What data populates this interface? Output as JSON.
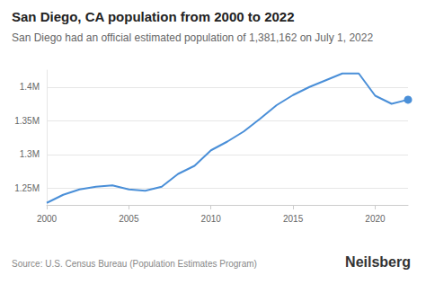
{
  "chart_data": {
    "type": "line",
    "title": "San Diego, CA population from 2000 to 2022",
    "subtitle": "San Diego had an official estimated population of 1,381,162 on July 1, 2022",
    "annotations": [
      "Source: U.S. Census Bureau (Population Estimates Program)",
      "Neilsberg"
    ],
    "x": [
      2000,
      2001,
      2002,
      2003,
      2004,
      2005,
      2006,
      2007,
      2008,
      2009,
      2010,
      2011,
      2012,
      2013,
      2014,
      2015,
      2016,
      2017,
      2018,
      2019,
      2020,
      2021,
      2022
    ],
    "values": [
      1228000,
      1240000,
      1248000,
      1252000,
      1254000,
      1248000,
      1246000,
      1252000,
      1271000,
      1283000,
      1306000,
      1319000,
      1334000,
      1353000,
      1373000,
      1388000,
      1400000,
      1410000,
      1420000,
      1420000,
      1387000,
      1375000,
      1381162
    ],
    "color": "#4a8fd8",
    "marker": "circle",
    "xlim": [
      2000,
      2022
    ],
    "xticks": [
      2000,
      2005,
      2010,
      2015,
      2020
    ],
    "ylim": [
      1225000,
      1425000
    ],
    "yticks": [
      {
        "value": 1250000,
        "label": "1.25M"
      },
      {
        "value": 1300000,
        "label": "1.3M"
      },
      {
        "value": 1350000,
        "label": "1.35M"
      },
      {
        "value": 1400000,
        "label": "1.4M"
      }
    ],
    "grid": true
  }
}
